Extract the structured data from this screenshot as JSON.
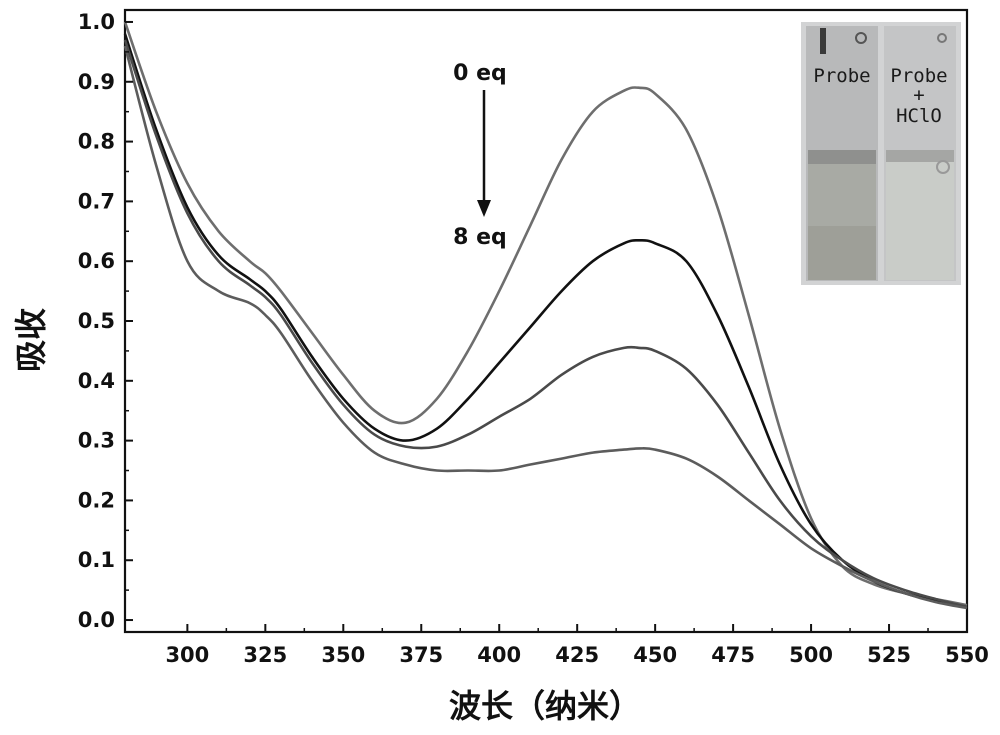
{
  "chart_data": {
    "type": "line",
    "xlabel": "波长（纳米）",
    "ylabel": "吸收",
    "xlim": [
      280,
      550
    ],
    "ylim": [
      -0.02,
      1.02
    ],
    "x_ticks": [
      300,
      325,
      350,
      375,
      400,
      425,
      450,
      475,
      500,
      525,
      550
    ],
    "x_tick_labels": [
      "300",
      "325",
      "350",
      "375",
      "400",
      "425",
      "450",
      "475",
      "500",
      "525",
      "550"
    ],
    "y_ticks": [
      0.0,
      0.1,
      0.2,
      0.3,
      0.4,
      0.5,
      0.6,
      0.7,
      0.8,
      0.9,
      1.0
    ],
    "y_tick_labels": [
      "0.0",
      "0.1",
      "0.2",
      "0.3",
      "0.4",
      "0.5",
      "0.6",
      "0.7",
      "0.8",
      "0.9",
      "1.0"
    ],
    "grid": false,
    "legend": "none",
    "x": [
      280,
      290,
      300,
      310,
      320,
      325,
      330,
      340,
      350,
      360,
      370,
      380,
      390,
      400,
      410,
      420,
      430,
      440,
      445,
      450,
      460,
      470,
      480,
      490,
      500,
      510,
      520,
      530,
      540,
      550
    ],
    "series": [
      {
        "color": "#6e6e6e",
        "values": [
          1.0,
          0.85,
          0.73,
          0.65,
          0.6,
          0.58,
          0.55,
          0.48,
          0.41,
          0.35,
          0.33,
          0.37,
          0.45,
          0.55,
          0.66,
          0.77,
          0.85,
          0.885,
          0.89,
          0.88,
          0.82,
          0.69,
          0.51,
          0.32,
          0.17,
          0.09,
          0.06,
          0.045,
          0.035,
          0.025
        ]
      },
      {
        "color": "#111111",
        "values": [
          0.98,
          0.82,
          0.69,
          0.61,
          0.57,
          0.55,
          0.52,
          0.44,
          0.37,
          0.32,
          0.3,
          0.32,
          0.37,
          0.43,
          0.49,
          0.55,
          0.6,
          0.63,
          0.635,
          0.63,
          0.6,
          0.51,
          0.39,
          0.26,
          0.16,
          0.1,
          0.065,
          0.045,
          0.032,
          0.022
        ]
      },
      {
        "color": "#4a4a4a",
        "values": [
          0.97,
          0.81,
          0.68,
          0.6,
          0.56,
          0.54,
          0.51,
          0.43,
          0.36,
          0.31,
          0.29,
          0.29,
          0.31,
          0.34,
          0.37,
          0.41,
          0.44,
          0.455,
          0.455,
          0.45,
          0.42,
          0.36,
          0.28,
          0.2,
          0.14,
          0.1,
          0.07,
          0.05,
          0.035,
          0.022
        ]
      },
      {
        "color": "#5c5c5c",
        "values": [
          0.96,
          0.76,
          0.6,
          0.55,
          0.53,
          0.51,
          0.48,
          0.4,
          0.33,
          0.28,
          0.26,
          0.25,
          0.25,
          0.25,
          0.26,
          0.27,
          0.28,
          0.285,
          0.287,
          0.285,
          0.27,
          0.24,
          0.2,
          0.16,
          0.12,
          0.09,
          0.065,
          0.045,
          0.03,
          0.02
        ]
      }
    ],
    "annotations": [
      {
        "text": "0 eq",
        "x": 400,
        "y": 0.925
      },
      {
        "text": "8 eq",
        "x": 400,
        "y": 0.645
      },
      {
        "type": "arrow",
        "from": [
          395,
          0.9
        ],
        "to": [
          395,
          0.67
        ]
      }
    ],
    "inset": {
      "labels": [
        "Probe",
        "Probe",
        "+",
        "HClO"
      ]
    }
  }
}
